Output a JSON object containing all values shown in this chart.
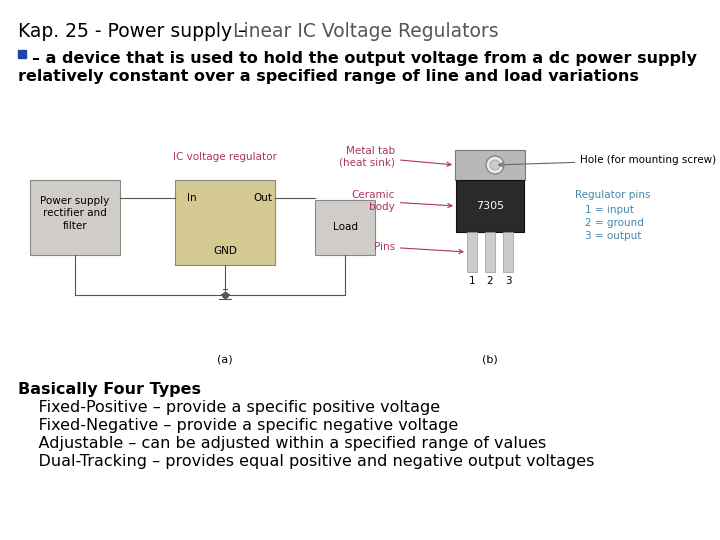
{
  "title_part1": "Kap. 25 - Power supply –  ",
  "title_part2": "Linear IC Voltage Regulators",
  "bullet_line1": "– a device that is used to hold the output voltage from a dc power supply",
  "bullet_line2": "relatively constant over a specified range of line and load variations",
  "bottom_text": [
    "Basically Four Types",
    "    Fixed-Positive – provide a specific positive voltage",
    "    Fixed-Negative – provide a specific negative voltage",
    "    Adjustable – can be adjusted within a specified range of values",
    "    Dual-Tracking – provides equal positive and negative output voltages"
  ],
  "bg_color": "#ffffff",
  "title1_color": "#000000",
  "title2_color": "#444444",
  "bullet_sq_color": "#2244aa",
  "label_color": "#aa3366",
  "teal_color": "#4488aa",
  "body_bold_color": "#000000",
  "diagram_label_color": "#aa3366",
  "body_font_size": 11.5,
  "title_font_size": 13.5,
  "diag_font_size": 7.5
}
